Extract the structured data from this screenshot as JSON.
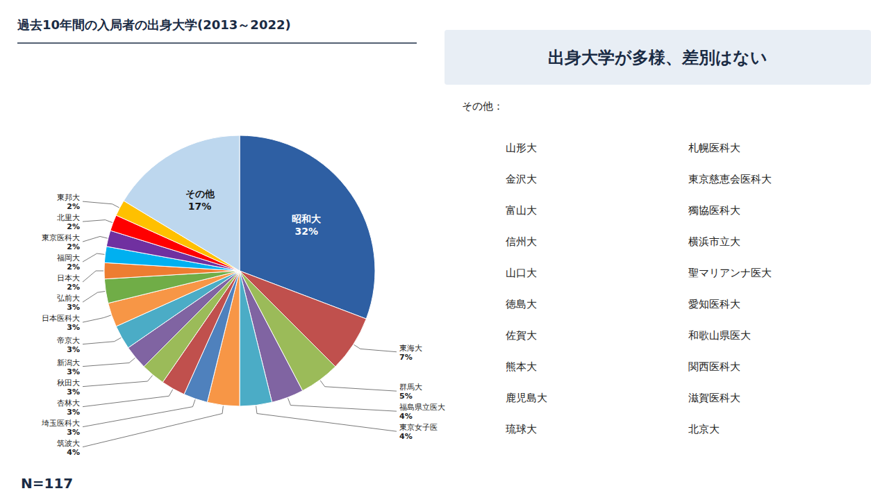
{
  "chart_data": {
    "type": "pie",
    "title": "過去10年間の入局者の出身大学(2013～2022)",
    "subtitle": "出身大学が多様、差別はない",
    "categories": [
      "昭和大",
      "東海大",
      "群馬大",
      "福島県立医大",
      "東京女子医",
      "筑波大",
      "埼玉医科大",
      "杏林大",
      "秋田大",
      "新潟大",
      "帝京大",
      "日本医科大",
      "弘前大",
      "日本大",
      "福岡大",
      "東京医科大",
      "北里大",
      "東邦大",
      "その他"
    ],
    "values": [
      32,
      7,
      5,
      4,
      4,
      4,
      3,
      3,
      3,
      3,
      3,
      3,
      3,
      2,
      2,
      2,
      2,
      2,
      17
    ],
    "value_labels": [
      "32%",
      "7%",
      "5%",
      "4%",
      "4%",
      "4%",
      "3%",
      "3%",
      "3%",
      "3%",
      "3%",
      "3%",
      "3%",
      "2%",
      "2%",
      "2%",
      "2%",
      "2%",
      "17%"
    ],
    "colors": [
      "#2E5FA3",
      "#C0504D",
      "#9BBB59",
      "#8064A2",
      "#4BACC6",
      "#F79646",
      "#4F81BD",
      "#C0504D",
      "#9BBB59",
      "#8064A2",
      "#4BACC6",
      "#F79646",
      "#70AD47",
      "#ED7D31",
      "#00B0F0",
      "#7030A0",
      "#FF0000",
      "#FFC000",
      "#BDD7EE"
    ],
    "data_labels": true,
    "annotations": [
      "N=117",
      "その他："
    ],
    "other_list": [
      [
        "山形大",
        "金沢大",
        "富山大",
        "信州大",
        "山口大",
        "徳島大",
        "佐賀大",
        "熊本大",
        "鹿児島大",
        "琉球大"
      ],
      [
        "札幌医科大",
        "東京慈恵会医科大",
        "獨協医科大",
        "横浜市立大",
        "聖マリアンナ医大",
        "愛知医科大",
        "和歌山県医大",
        "関西医科大",
        "滋賀医科大",
        "北京大"
      ]
    ]
  }
}
